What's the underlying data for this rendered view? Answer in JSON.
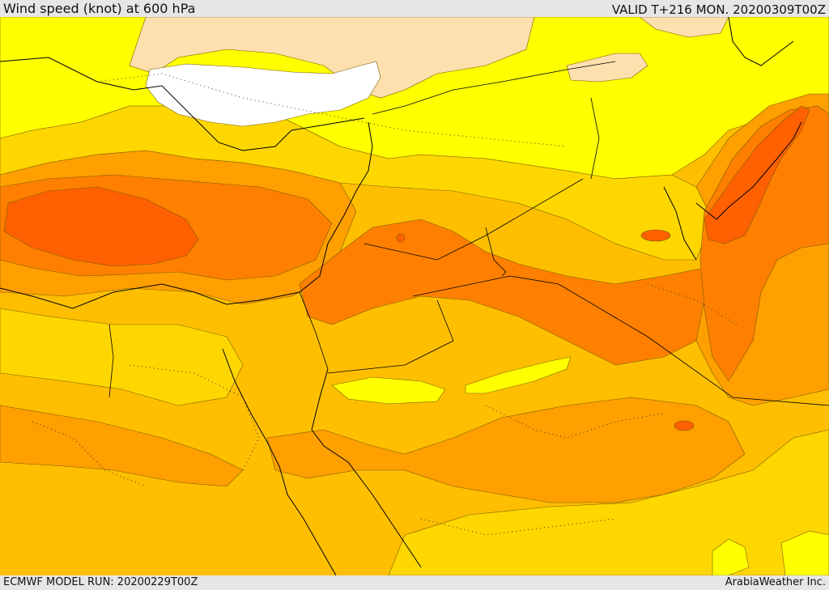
{
  "header": {
    "title": "Wind speed (knot) at 600 hPa",
    "valid": "VALID T+216 MON. 20200309T00Z"
  },
  "footer": {
    "model_run": "ECMWF MODEL RUN: 20200229T00Z",
    "credit": "ArabiaWeather Inc."
  },
  "colors": {
    "white_band": "#ffffff",
    "peach_band": "#fde0ae",
    "yellow_band": "#ffff00",
    "gold_band": "#ffd700",
    "amber_band": "#ffbf00",
    "orange_band": "#ff9f00",
    "dark_orange_band": "#ff8000",
    "red_orange_band": "#ff6000"
  }
}
